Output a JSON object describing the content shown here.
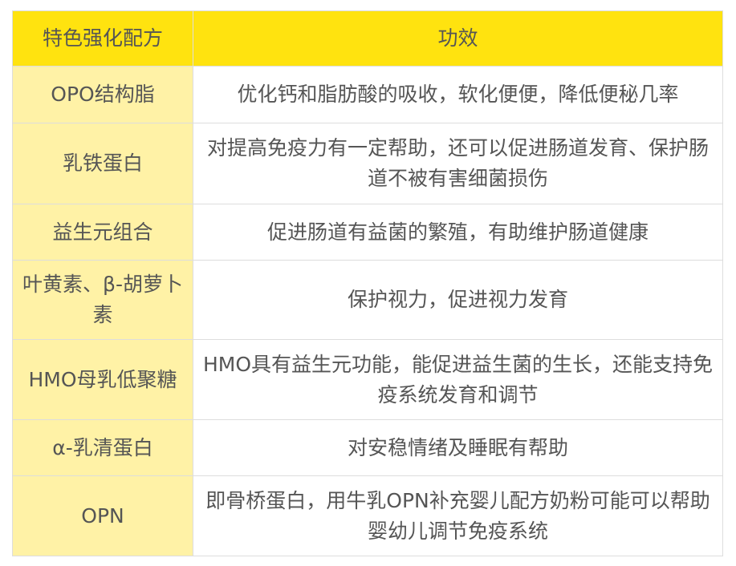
{
  "headers": [
    "特色强化配方",
    "功效"
  ],
  "rows": [
    {
      "formula": "OPO结构脂",
      "effect": "优化钙和脂肪酸的吸收，软化便便，降低便秘几率"
    },
    {
      "formula": "乳铁蛋白",
      "effect": "对提高免疫力有一定帮助，还可以促进肠道发育、保护肠道不被有害细菌损伤"
    },
    {
      "formula": "益生元组合",
      "effect": "促进肠道有益菌的繁殖，有助维护肠道健康"
    },
    {
      "formula": "叶黄素、β-胡萝卜素",
      "effect": "保护视力，促进视力发育"
    },
    {
      "formula": "HMO母乳低聚糖",
      "effect": "HMO具有益生元功能，能促进益生菌的生长，还能支持免疫系统发育和调节"
    },
    {
      "formula": "α-乳清蛋白",
      "effect": "对安稳情绪及睡眠有帮助"
    },
    {
      "formula": "OPN",
      "effect": "即骨桥蛋白，用牛乳OPN补充婴儿配方奶粉可能可以帮助婴幼儿调节免疫系统"
    }
  ]
}
